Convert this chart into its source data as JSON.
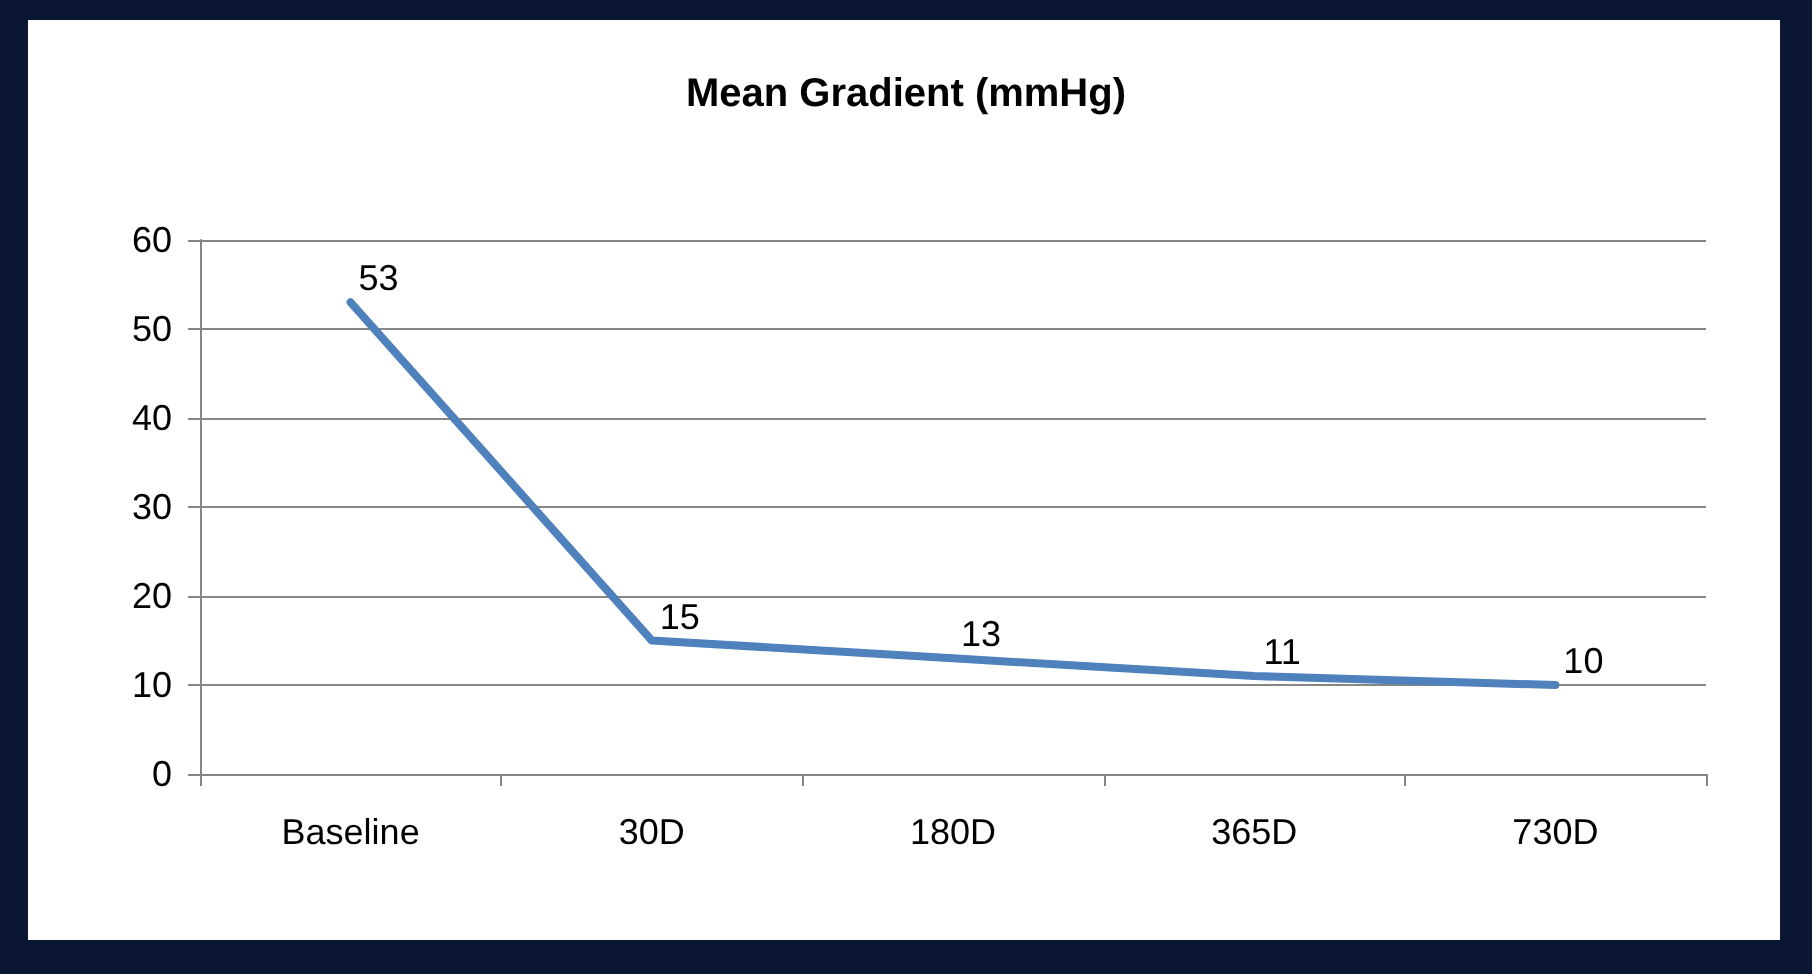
{
  "chart_data": {
    "type": "line",
    "title": "Mean Gradient (mmHg)",
    "categories": [
      "Baseline",
      "30D",
      "180D",
      "365D",
      "730D"
    ],
    "series": [
      {
        "color": "#4f81bd",
        "values": [
          53,
          15,
          13,
          11,
          10
        ]
      }
    ],
    "ylim": [
      0,
      60
    ],
    "yticks": [
      0,
      10,
      20,
      30,
      40,
      50,
      60
    ],
    "grid": "y",
    "data_labels": true
  }
}
